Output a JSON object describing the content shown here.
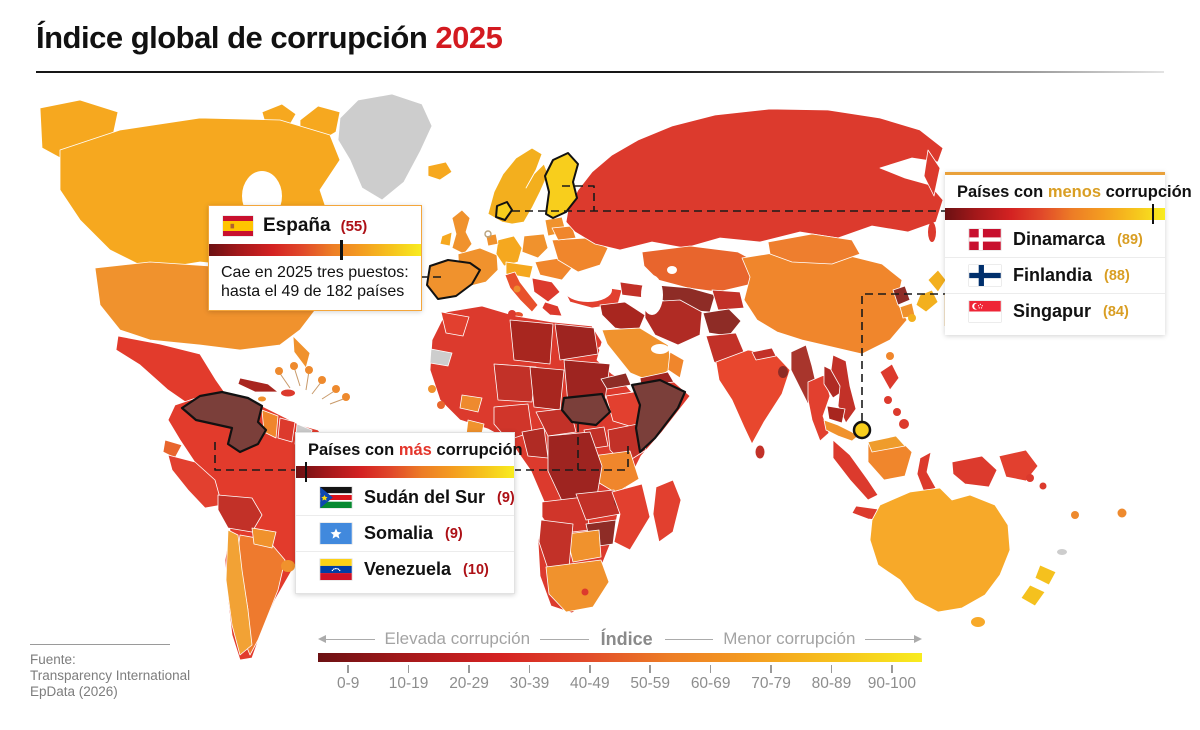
{
  "title": {
    "text": "Índice global de corrupción",
    "year": "2025"
  },
  "espana_callout": {
    "country": "España",
    "score": "(55)",
    "marker_pct": 62,
    "note_line1": "Cae en 2025 tres puestos:",
    "note_line2": "hasta el 49 de 182 países"
  },
  "box_menos": {
    "header_pre": "Países con ",
    "header_em": "menos",
    "header_post": " corrupción",
    "marker_pct": 94,
    "entries": [
      {
        "flag": "denmark-flag",
        "name": "Dinamarca",
        "score": "(89)"
      },
      {
        "flag": "finland-flag",
        "name": "Finlandia",
        "score": "(88)"
      },
      {
        "flag": "singapore-flag",
        "name": "Singapur",
        "score": "(84)"
      }
    ]
  },
  "box_mas": {
    "header_pre": "Países con ",
    "header_em": "más",
    "header_post": " corrupción",
    "marker_pct": 4,
    "entries": [
      {
        "flag": "south-sudan-flag",
        "name": "Sudán del Sur",
        "score": "(9)"
      },
      {
        "flag": "somalia-flag",
        "name": "Somalia",
        "score": "(9)"
      },
      {
        "flag": "venezuela-flag",
        "name": "Venezuela",
        "score": "(10)"
      }
    ]
  },
  "legend": {
    "left": "Elevada corrupción",
    "center": "Índice",
    "right": "Menor corrupción",
    "ranges": [
      "0-9",
      "10-19",
      "20-29",
      "30-39",
      "40-49",
      "50-59",
      "60-69",
      "70-79",
      "80-89",
      "90-100"
    ]
  },
  "source": {
    "label": "Fuente:",
    "line1": "Transparency International",
    "line2": "EpData (2026)"
  },
  "colors": {
    "accent_red": "#D31A20",
    "accent_gold": "#D99E23",
    "score_dark_red": "#AD1016",
    "no_data_gray": "#CDCDCD",
    "highlight_brown": "#7B3F3A",
    "scale": [
      "#6B1113",
      "#A3181A",
      "#D42222",
      "#E1492A",
      "#ED7D26",
      "#F49D20",
      "#F6C31D",
      "#F8EC1F"
    ]
  }
}
